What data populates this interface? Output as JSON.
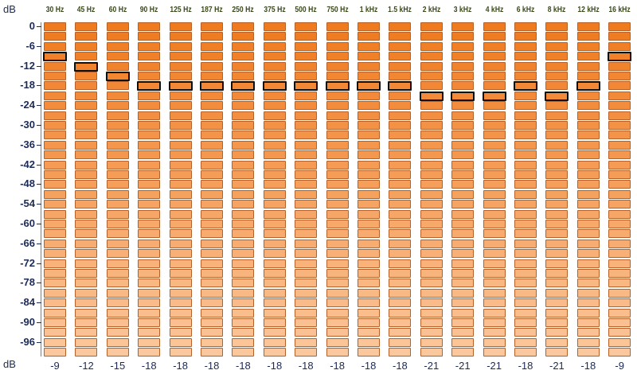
{
  "axis": {
    "unit_top": "dB",
    "unit_bottom": "dB",
    "ticks": [
      "0",
      "-6",
      "-12",
      "-18",
      "-24",
      "-30",
      "-36",
      "-42",
      "-48",
      "-54",
      "-60",
      "-66",
      "-72",
      "-78",
      "-84",
      "-90",
      "-96"
    ]
  },
  "bands": [
    {
      "freq": "30 Hz",
      "value": "-9"
    },
    {
      "freq": "45 Hz",
      "value": "-12"
    },
    {
      "freq": "60 Hz",
      "value": "-15"
    },
    {
      "freq": "90 Hz",
      "value": "-18"
    },
    {
      "freq": "125 Hz",
      "value": "-18"
    },
    {
      "freq": "187 Hz",
      "value": "-18"
    },
    {
      "freq": "250 Hz",
      "value": "-18"
    },
    {
      "freq": "375 Hz",
      "value": "-18"
    },
    {
      "freq": "500 Hz",
      "value": "-18"
    },
    {
      "freq": "750 Hz",
      "value": "-18"
    },
    {
      "freq": "1 kHz",
      "value": "-18"
    },
    {
      "freq": "1.5 kHz",
      "value": "-18"
    },
    {
      "freq": "2 kHz",
      "value": "-21"
    },
    {
      "freq": "3 kHz",
      "value": "-21"
    },
    {
      "freq": "4 kHz",
      "value": "-21"
    },
    {
      "freq": "6 kHz",
      "value": "-18"
    },
    {
      "freq": "8 kHz",
      "value": "-21"
    },
    {
      "freq": "12 kHz",
      "value": "-18"
    },
    {
      "freq": "16 kHz",
      "value": "-9"
    }
  ],
  "colors": {
    "segment_top": "#f07a1e",
    "segment_bottom": "#fbc79c",
    "segment_border": "#b7612a",
    "level_border": "#101010",
    "axis_text": "#1c2a56",
    "freq_text": "#3b4a1a"
  }
}
